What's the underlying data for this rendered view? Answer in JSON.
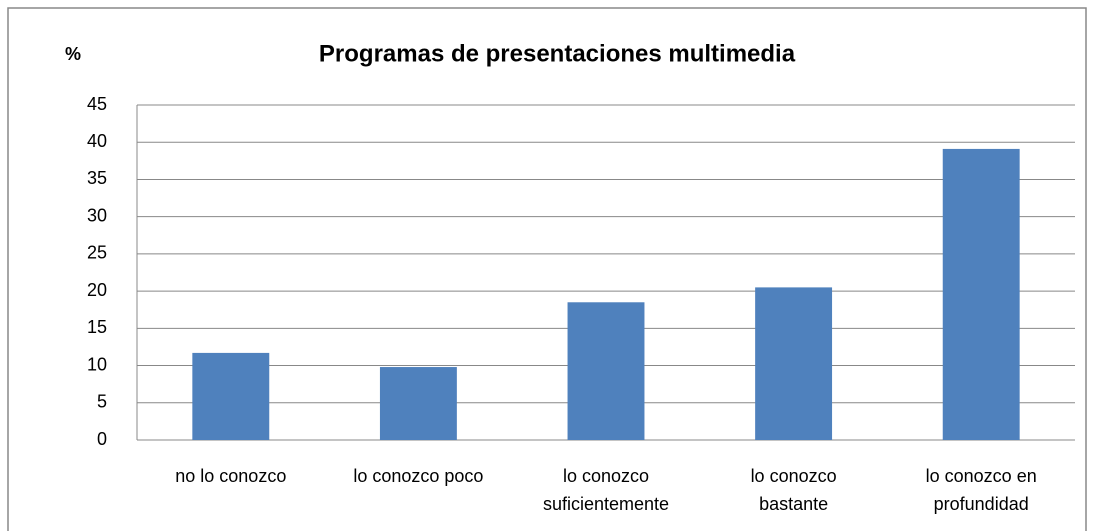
{
  "chart_data": {
    "type": "bar",
    "title": "Programas de presentaciones multimedia",
    "y_label": "%",
    "categories": [
      "no lo conozco",
      "lo conozco poco",
      "lo conozco suficientemente",
      "lo conozco bastante",
      "lo conozco en profundidad"
    ],
    "values": [
      11.7,
      9.8,
      18.5,
      20.5,
      39.1
    ],
    "color": "#4f81bd",
    "ylim": [
      0,
      45
    ],
    "yticks": [
      0,
      5,
      10,
      15,
      20,
      25,
      30,
      35,
      40,
      45
    ],
    "grid": true
  }
}
